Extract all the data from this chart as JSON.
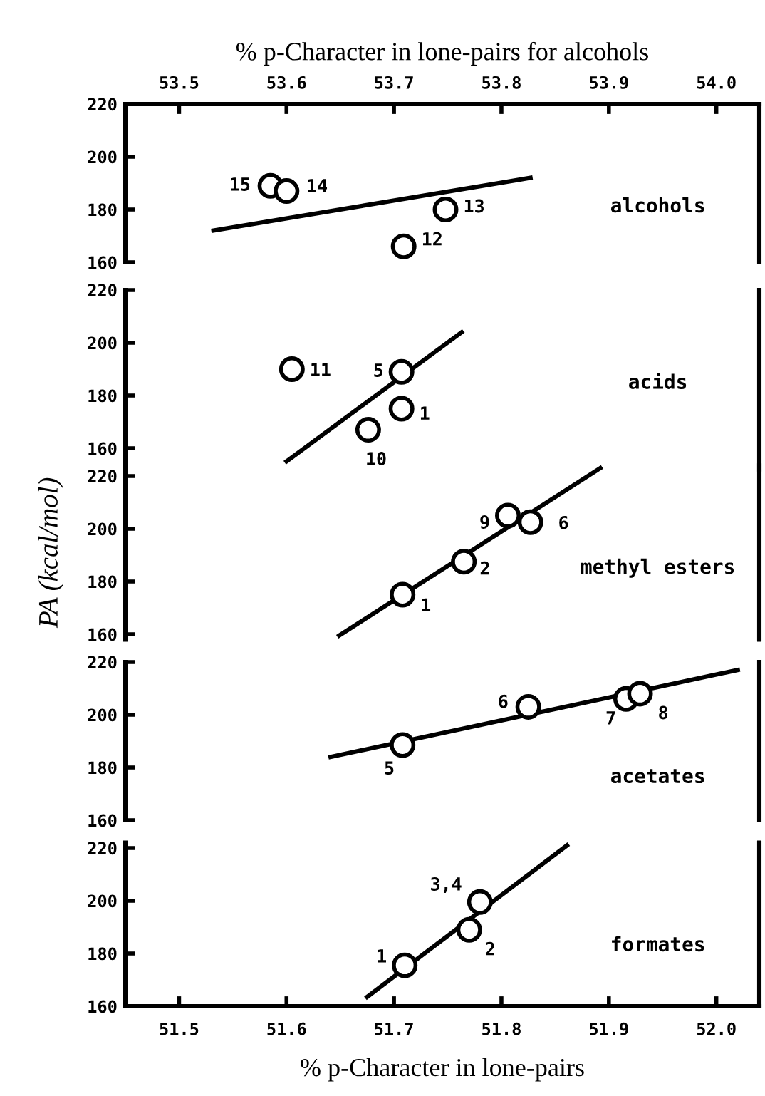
{
  "chart_data": [
    {
      "type": "scatter",
      "xlabel": "% p-Character in lone-pairs for alcohols",
      "xlim": [
        53.45,
        54.04
      ],
      "xticks": [
        {
          "value": 53.5,
          "label": "53.5"
        },
        {
          "value": 53.6,
          "label": "53.6"
        },
        {
          "value": 53.7,
          "label": "53.7"
        },
        {
          "value": 53.8,
          "label": "53.8"
        },
        {
          "value": 53.9,
          "label": "53.9"
        },
        {
          "value": 54.0,
          "label": "54.0"
        }
      ],
      "ylim": [
        160,
        220
      ],
      "yticks": [
        160,
        180,
        200,
        220
      ],
      "grid": false,
      "marker": "circle",
      "series": [
        {
          "name": "alcohols",
          "color": "#000000",
          "x": [
            53.585,
            53.6,
            53.748,
            53.709
          ],
          "values": [
            189,
            187,
            180,
            166
          ]
        },
        {
          "type": "line",
          "color": "#000000",
          "marker": "none",
          "x": [
            53.532,
            53.827
          ],
          "values": [
            172,
            192
          ]
        }
      ],
      "annotations": [
        {
          "text": "15",
          "x": 53.585,
          "y": 189
        },
        {
          "text": "14",
          "x": 53.6,
          "y": 187
        },
        {
          "text": "13",
          "x": 53.748,
          "y": 180
        },
        {
          "text": "12",
          "x": 53.709,
          "y": 166
        }
      ]
    },
    {
      "type": "scatter",
      "xlim": [
        51.45,
        52.04
      ],
      "ylim": [
        152,
        220
      ],
      "yticks": [
        160,
        180,
        200,
        220
      ],
      "tick_labels": "y",
      "grid": false,
      "marker": "circle",
      "series": [
        {
          "name": "acids",
          "color": "#000000",
          "x": [
            51.605,
            51.707,
            51.707,
            51.676
          ],
          "values": [
            190,
            189,
            175,
            167
          ]
        },
        {
          "type": "line",
          "color": "#000000",
          "marker": "none",
          "x": [
            51.6,
            51.763
          ],
          "values": [
            155,
            204
          ]
        }
      ],
      "annotations": [
        {
          "text": "11",
          "x": 51.605,
          "y": 190
        },
        {
          "text": "5",
          "x": 51.707,
          "y": 189
        },
        {
          "text": "1",
          "x": 51.707,
          "y": 175
        },
        {
          "text": "10",
          "x": 51.676,
          "y": 167
        }
      ]
    },
    {
      "type": "scatter",
      "ylabel": "PA (kcal/mol)",
      "xlim": [
        51.45,
        52.04
      ],
      "ylim": [
        158,
        224
      ],
      "yticks": [
        160,
        180,
        200,
        220
      ],
      "tick_labels": "y",
      "grid": false,
      "marker": "circle",
      "series": [
        {
          "name": "methyl esters",
          "color": "#000000",
          "x": [
            51.806,
            51.827,
            51.765,
            51.708
          ],
          "values": [
            205,
            202.5,
            187.5,
            175
          ]
        },
        {
          "type": "line",
          "color": "#000000",
          "marker": "none",
          "x": [
            51.649,
            51.892
          ],
          "values": [
            159.5,
            223
          ]
        }
      ],
      "annotations": [
        {
          "text": "9",
          "x": 51.806,
          "y": 205
        },
        {
          "text": "6",
          "x": 51.827,
          "y": 202.5
        },
        {
          "text": "2",
          "x": 51.765,
          "y": 187.5
        },
        {
          "text": "1",
          "x": 51.708,
          "y": 175
        }
      ]
    },
    {
      "type": "scatter",
      "xlim": [
        51.45,
        52.04
      ],
      "ylim": [
        160,
        220
      ],
      "yticks": [
        160,
        180,
        200,
        220
      ],
      "tick_labels": "y",
      "grid": false,
      "marker": "circle",
      "series": [
        {
          "name": "acetates",
          "color": "#000000",
          "x": [
            51.825,
            51.916,
            51.929,
            51.708
          ],
          "values": [
            203,
            206,
            208,
            188.5
          ]
        },
        {
          "type": "line",
          "color": "#000000",
          "marker": "none",
          "x": [
            51.641,
            52.02
          ],
          "values": [
            184,
            217
          ]
        }
      ],
      "annotations": [
        {
          "text": "6",
          "x": 51.825,
          "y": 203
        },
        {
          "text": "7",
          "x": 51.916,
          "y": 206
        },
        {
          "text": "8",
          "x": 51.929,
          "y": 208
        },
        {
          "text": "5",
          "x": 51.708,
          "y": 188.5
        }
      ]
    },
    {
      "type": "scatter",
      "xlabel": "% p-Character in lone-pairs",
      "xlim": [
        51.45,
        52.04
      ],
      "xticks": [
        {
          "value": 51.5,
          "label": "51.5"
        },
        {
          "value": 51.6,
          "label": "51.6"
        },
        {
          "value": 51.7,
          "label": "51.7"
        },
        {
          "value": 51.8,
          "label": "51.8"
        },
        {
          "value": 51.9,
          "label": "51.9"
        },
        {
          "value": 52.0,
          "label": "52.0"
        }
      ],
      "ylim": [
        160,
        222
      ],
      "yticks": [
        160,
        180,
        200,
        220
      ],
      "grid": false,
      "marker": "circle",
      "series": [
        {
          "name": "formates",
          "color": "#000000",
          "x": [
            51.78,
            51.77,
            51.71
          ],
          "values": [
            199.5,
            189,
            175.5
          ]
        },
        {
          "type": "line",
          "color": "#000000",
          "marker": "none",
          "x": [
            51.675,
            51.861
          ],
          "values": [
            163.5,
            221
          ]
        }
      ],
      "annotations": [
        {
          "text": "3,4",
          "x": 51.78,
          "y": 199.5
        },
        {
          "text": "2",
          "x": 51.77,
          "y": 189
        },
        {
          "text": "1",
          "x": 51.71,
          "y": 175.5
        }
      ]
    }
  ]
}
